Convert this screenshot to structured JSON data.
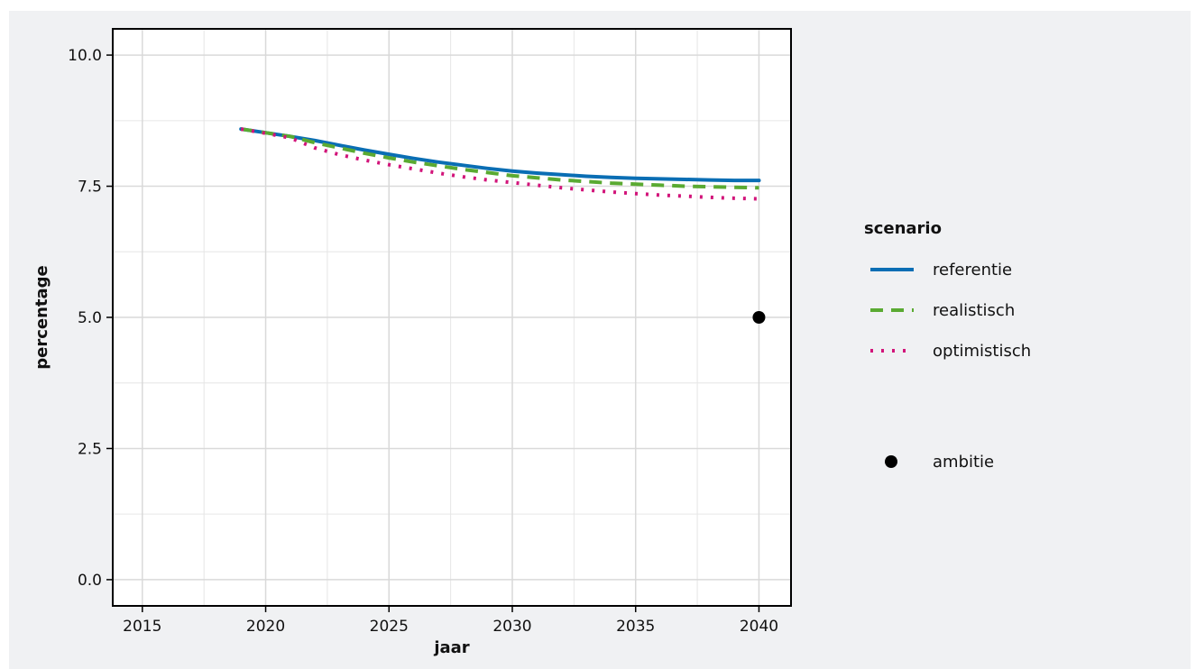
{
  "chart_data": {
    "type": "line",
    "xlabel": "jaar",
    "ylabel": "percentage",
    "xlim": [
      2013.8,
      2041.3
    ],
    "ylim": [
      -0.5,
      10.5
    ],
    "xticks": [
      2015,
      2020,
      2025,
      2030,
      2035,
      2040
    ],
    "yticks": [
      0.0,
      2.5,
      5.0,
      7.5,
      10.0
    ],
    "ytick_labels": [
      "0.0",
      "2.5",
      "5.0",
      "7.5",
      "10.0"
    ],
    "grid": true,
    "legend": {
      "title": "scenario",
      "position": "right"
    },
    "series": [
      {
        "name": "referentie",
        "style": "solid",
        "color": "#0a6eb4",
        "x": [
          2019,
          2020,
          2021,
          2022,
          2023,
          2024,
          2025,
          2026,
          2027,
          2028,
          2029,
          2030,
          2031,
          2032,
          2033,
          2034,
          2035,
          2036,
          2037,
          2038,
          2039,
          2040
        ],
        "values": [
          8.59,
          8.52,
          8.45,
          8.37,
          8.28,
          8.19,
          8.11,
          8.03,
          7.96,
          7.9,
          7.84,
          7.79,
          7.75,
          7.72,
          7.69,
          7.67,
          7.65,
          7.64,
          7.63,
          7.62,
          7.61,
          7.61
        ]
      },
      {
        "name": "realistisch",
        "style": "dashed",
        "color": "#5aaa32",
        "x": [
          2019,
          2020,
          2021,
          2022,
          2023,
          2024,
          2025,
          2026,
          2027,
          2028,
          2029,
          2030,
          2031,
          2032,
          2033,
          2034,
          2035,
          2036,
          2037,
          2038,
          2039,
          2040
        ],
        "values": [
          8.59,
          8.52,
          8.45,
          8.33,
          8.23,
          8.13,
          8.04,
          7.96,
          7.89,
          7.82,
          7.76,
          7.7,
          7.66,
          7.62,
          7.59,
          7.56,
          7.54,
          7.52,
          7.5,
          7.49,
          7.48,
          7.47
        ]
      },
      {
        "name": "optimistisch",
        "style": "dotted",
        "color": "#d2147a",
        "x": [
          2019,
          2020,
          2021,
          2022,
          2023,
          2024,
          2025,
          2026,
          2027,
          2028,
          2029,
          2030,
          2031,
          2032,
          2033,
          2034,
          2035,
          2036,
          2037,
          2038,
          2039,
          2040
        ],
        "values": [
          8.59,
          8.51,
          8.42,
          8.23,
          8.1,
          8.0,
          7.91,
          7.83,
          7.75,
          7.68,
          7.62,
          7.57,
          7.52,
          7.47,
          7.43,
          7.39,
          7.36,
          7.33,
          7.31,
          7.29,
          7.27,
          7.26
        ]
      }
    ],
    "points": [
      {
        "name": "ambitie",
        "x": 2040,
        "y": 5.0,
        "color": "#000000"
      }
    ]
  }
}
